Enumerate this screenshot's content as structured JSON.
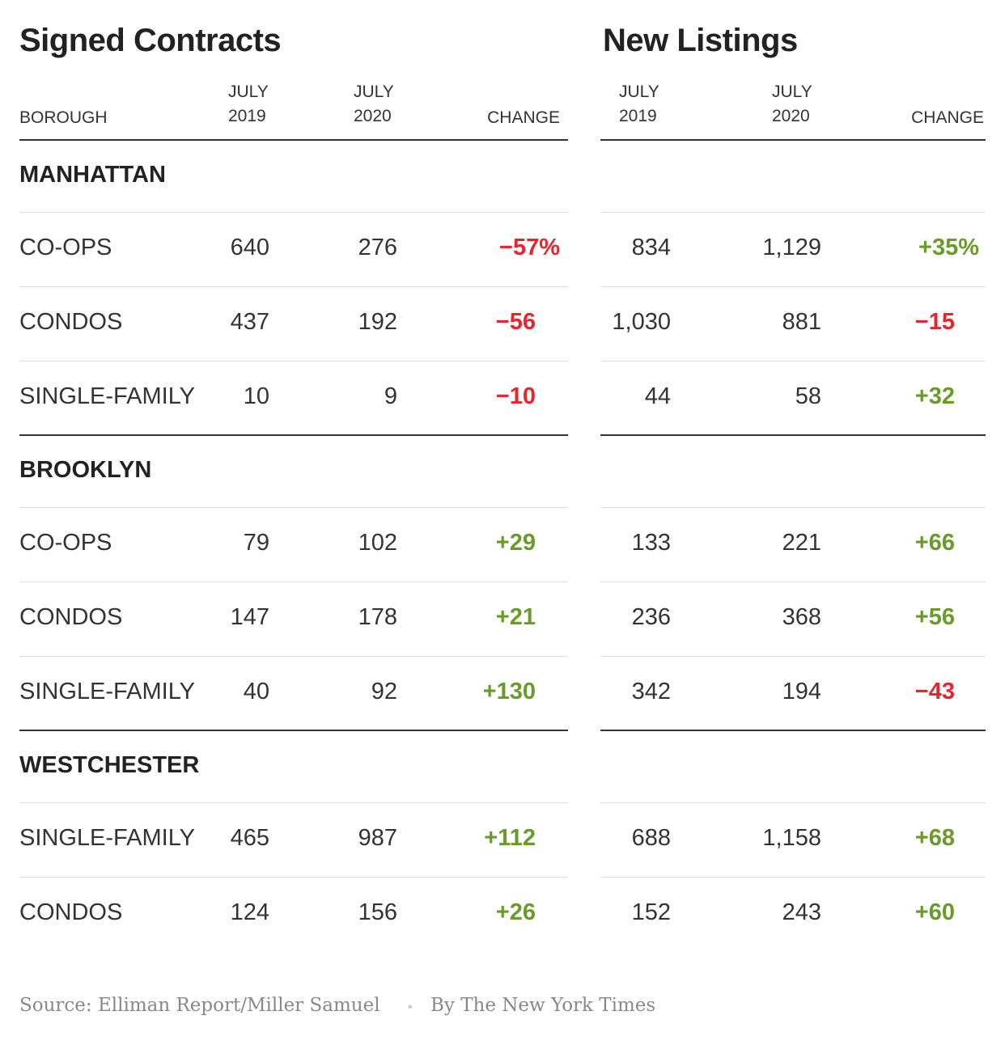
{
  "titles": {
    "left": "Signed Contracts",
    "right": "New Listings"
  },
  "headers": {
    "borough": "BOROUGH",
    "y2019": [
      "JULY",
      "2019"
    ],
    "y2020": [
      "JULY",
      "2020"
    ],
    "change": "CHANGE"
  },
  "colors": {
    "negative": "#e4262e",
    "positive": "#6a9a2a"
  },
  "sections": [
    {
      "name": "MANHATTAN",
      "rows": [
        {
          "type": "CO-OPS",
          "contracts": [
            "640",
            "276",
            "−57%"
          ],
          "listings": [
            "834",
            "1,129",
            "+35%"
          ]
        },
        {
          "type": "CONDOS",
          "contracts": [
            "437",
            "192",
            "−56"
          ],
          "listings": [
            "1,030",
            "881",
            "−15"
          ]
        },
        {
          "type": "SINGLE-FAMILY",
          "contracts": [
            "10",
            "9",
            "−10"
          ],
          "listings": [
            "44",
            "58",
            "+32"
          ]
        }
      ]
    },
    {
      "name": "BROOKLYN",
      "rows": [
        {
          "type": "CO-OPS",
          "contracts": [
            "79",
            "102",
            "+29"
          ],
          "listings": [
            "133",
            "221",
            "+66"
          ]
        },
        {
          "type": "CONDOS",
          "contracts": [
            "147",
            "178",
            "+21"
          ],
          "listings": [
            "236",
            "368",
            "+56"
          ]
        },
        {
          "type": "SINGLE-FAMILY",
          "contracts": [
            "40",
            "92",
            "+130"
          ],
          "listings": [
            "342",
            "194",
            "−43"
          ]
        }
      ]
    },
    {
      "name": "WESTCHESTER",
      "rows": [
        {
          "type": "SINGLE-FAMILY",
          "contracts": [
            "465",
            "987",
            "+112"
          ],
          "listings": [
            "688",
            "1,158",
            "+68"
          ]
        },
        {
          "type": "CONDOS",
          "contracts": [
            "124",
            "156",
            "+26"
          ],
          "listings": [
            "152",
            "243",
            "+60"
          ]
        }
      ]
    }
  ],
  "footer": {
    "source": "Source: Elliman Report/Miller Samuel",
    "byline": "By The New York Times",
    "separator": "•"
  }
}
